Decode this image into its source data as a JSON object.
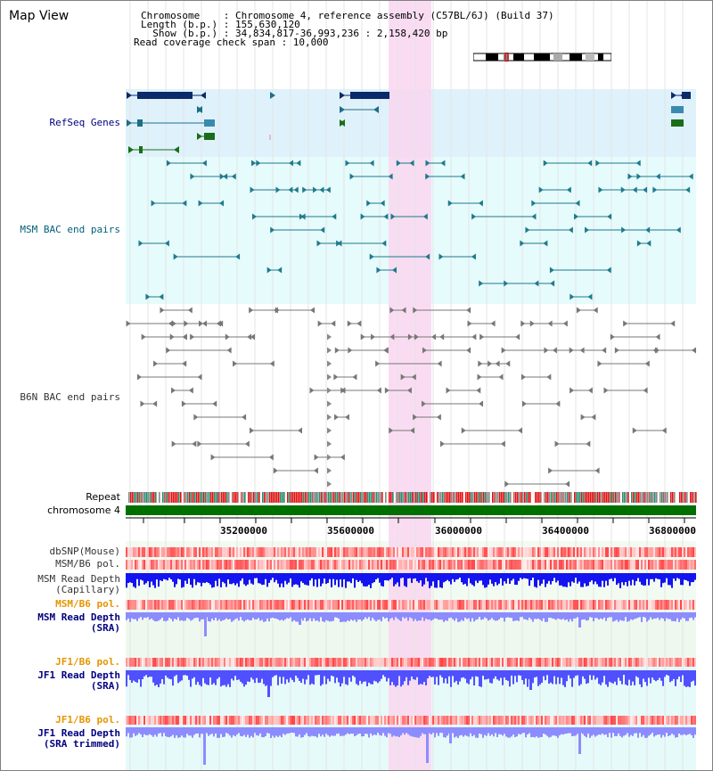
{
  "title": "Map View",
  "header": {
    "line1": "Chromosome    : Chromosome 4, reference assembly (C57BL/6J) (Build 37)",
    "line2": "Length (b.p.) : 155,630,120",
    "line3": "  Show (b.p.) : 34,834,817-36,993,236 : 2,158,420 bp",
    "line4": "Read coverage check span : 10,000"
  },
  "tracks": {
    "refseq": "RefSeq Genes",
    "msm_bac": "MSM BAC end pairs",
    "b6n_bac": "B6N BAC end pairs",
    "repeat": "Repeat",
    "chromosome": "chromosome 4",
    "dbsnp": "dbSNP(Mouse)",
    "msm_b6_pol_1": "MSM/B6 pol.",
    "msm_depth_cap_1": "MSM Read Depth",
    "msm_depth_cap_2": "(Capillary)",
    "msm_b6_pol_2": "MSM/B6 pol.",
    "msm_depth_sra_1": "MSM Read Depth",
    "msm_depth_sra_2": "(SRA)",
    "jf1_b6_pol_1": "JF1/B6 pol.",
    "jf1_depth_sra_1": "JF1 Read Depth",
    "jf1_depth_sra_2": "(SRA)",
    "jf1_b6_pol_2": "JF1/B6 pol.",
    "jf1_depth_trim_1": "JF1 Read Depth",
    "jf1_depth_trim_2": "(SRA trimmed)"
  },
  "axis": {
    "ticks": [
      "35200000",
      "35600000",
      "36000000",
      "36400000",
      "36800000"
    ]
  },
  "colors": {
    "refseq_bg": "#dff2fb",
    "msm_bg": "#e6fbfb",
    "highlight": "#f9d6f0",
    "gene_dark": "#0a2a6a",
    "gene_teal": "#1e6e8a",
    "gene_green": "#1a6e1a",
    "chromosome_bar": "#007000",
    "depth_blue": "#1e1eff",
    "depth_light": "#8c8cff",
    "label_blue": "#000080",
    "label_orange": "#e69500",
    "label_teal": "#00607a"
  }
}
